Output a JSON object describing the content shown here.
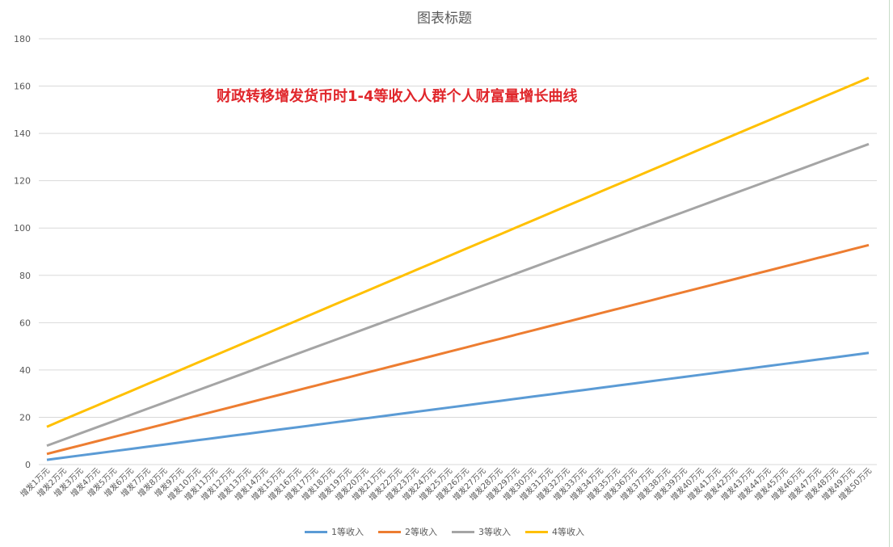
{
  "chart_data": {
    "type": "line",
    "title": "图表标题",
    "annotation": "财政转移增发货币时1-4等收入人群个人财富量增长曲线",
    "ylim": [
      0,
      180
    ],
    "yticks": [
      0,
      20,
      40,
      60,
      80,
      100,
      120,
      140,
      160,
      180
    ],
    "grid": true,
    "legend_position": "bottom",
    "categories": [
      "增发1万元",
      "增发2万元",
      "增发3万元",
      "增发4万元",
      "增发5万元",
      "增发6万元",
      "增发7万元",
      "增发8万元",
      "增发9万元",
      "增发10万元",
      "增发11万元",
      "增发12万元",
      "增发13万元",
      "增发14万元",
      "增发15万元",
      "增发16万元",
      "增发17万元",
      "增发18万元",
      "增发19万元",
      "增发20万元",
      "增发21万元",
      "增发22万元",
      "增发23万元",
      "增发24万元",
      "增发25万元",
      "增发26万元",
      "增发27万元",
      "增发28万元",
      "增发29万元",
      "增发30万元",
      "增发31万元",
      "增发32万元",
      "增发33万元",
      "增发34万元",
      "增发35万元",
      "增发36万元",
      "增发37万元",
      "增发38万元",
      "增发39万元",
      "增发40万元",
      "增发41万元",
      "增发42万元",
      "增发43万元",
      "增发44万元",
      "增发45万元",
      "增发46万元",
      "增发47万元",
      "增发48万元",
      "增发49万元",
      "增发50万元"
    ],
    "series": [
      {
        "name": "1等收入",
        "color": "#5b9bd5",
        "start": 2.0,
        "end": 47.2
      },
      {
        "name": "2等收入",
        "color": "#ed7d31",
        "start": 4.5,
        "end": 92.8
      },
      {
        "name": "3等收入",
        "color": "#a5a5a5",
        "start": 8.0,
        "end": 135.5
      },
      {
        "name": "4等收入",
        "color": "#ffc000",
        "start": 16.0,
        "end": 163.5
      }
    ]
  }
}
